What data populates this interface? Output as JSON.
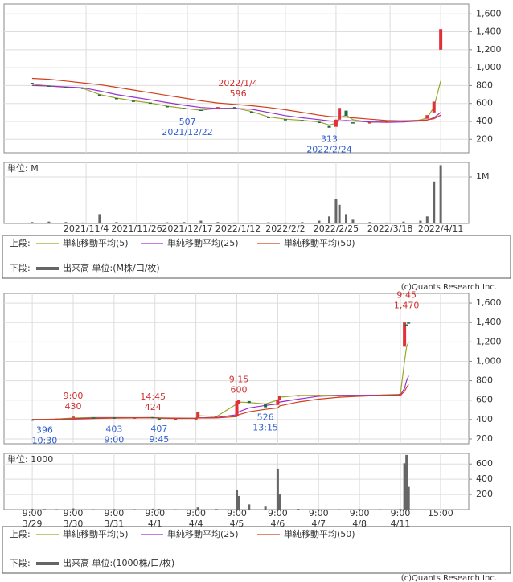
{
  "chart_data": [
    {
      "type": "candlestick",
      "volume_unit": "単位: M",
      "xlim": [
        -8.3,
        129.3
      ],
      "xticks": [
        {
          "value": 16,
          "label": "2021/11/4"
        },
        {
          "value": 31,
          "label": "2021/11/26"
        },
        {
          "value": 46,
          "label": "2021/12/17"
        },
        {
          "value": 61,
          "label": "2022/1/12"
        },
        {
          "value": 75,
          "label": "2022/2/2"
        },
        {
          "value": 90,
          "label": "2022/2/25"
        },
        {
          "value": 106,
          "label": "2022/3/18"
        },
        {
          "value": 121,
          "label": "2022/4/11"
        }
      ],
      "ylim": [
        50,
        1710
      ],
      "yticks": [
        200,
        400,
        600,
        800,
        {
          "value": 1000,
          "label": "1,000"
        },
        {
          "value": 1200,
          "label": "1,200"
        },
        {
          "value": 1400,
          "label": "1,400"
        },
        {
          "value": 1600,
          "label": "1,600"
        }
      ],
      "volume_ylim": [
        0,
        1310000
      ],
      "volume_yticks": [
        {
          "value": 1000000,
          "label": "1M"
        }
      ],
      "up_color": "#e0303a",
      "down_color": "#1d6b45",
      "volume_color": "#666666",
      "x": [
        0,
        5,
        10,
        15,
        20,
        25,
        30,
        35,
        40,
        45,
        50,
        55,
        60,
        65,
        70,
        75,
        80,
        85,
        88,
        90,
        91,
        93,
        95,
        100,
        105,
        110,
        115,
        117,
        119,
        121
      ],
      "open": [
        830,
        800,
        785,
        775,
        700,
        660,
        630,
        610,
        570,
        550,
        530,
        555,
        560,
        510,
        450,
        425,
        415,
        395,
        350,
        340,
        420,
        520,
        390,
        385,
        395,
        405,
        410,
        430,
        500,
        1200
      ],
      "close": [
        820,
        790,
        780,
        770,
        680,
        650,
        620,
        600,
        560,
        540,
        520,
        560,
        550,
        500,
        440,
        420,
        410,
        390,
        330,
        420,
        550,
        460,
        380,
        390,
        400,
        410,
        420,
        470,
        620,
        1430
      ],
      "volume": [
        30000,
        40000,
        30000,
        20000,
        200000,
        30000,
        20000,
        20000,
        25000,
        30000,
        60000,
        30000,
        20000,
        20000,
        25000,
        20000,
        30000,
        60000,
        150000,
        520000,
        400000,
        200000,
        80000,
        30000,
        20000,
        40000,
        60000,
        150000,
        900000,
        1250000
      ],
      "series": [
        {
          "name": "単純移動平均(5)",
          "color": "#9aa82a",
          "values": [
            815,
            795,
            780,
            770,
            700,
            660,
            630,
            605,
            570,
            545,
            525,
            545,
            550,
            510,
            450,
            425,
            412,
            395,
            360,
            380,
            440,
            470,
            420,
            390,
            398,
            405,
            415,
            440,
            560,
            850
          ]
        },
        {
          "name": "単純移動平均(25)",
          "color": "#9b30d0",
          "values": [
            800,
            795,
            785,
            775,
            740,
            700,
            670,
            640,
            610,
            580,
            555,
            545,
            545,
            535,
            500,
            465,
            440,
            420,
            405,
            400,
            405,
            410,
            405,
            395,
            390,
            395,
            405,
            415,
            440,
            500
          ]
        },
        {
          "name": "単純移動平均(50)",
          "color": "#d0401a",
          "values": [
            880,
            870,
            850,
            830,
            810,
            780,
            750,
            720,
            690,
            660,
            630,
            605,
            590,
            575,
            555,
            530,
            500,
            470,
            455,
            450,
            450,
            448,
            440,
            425,
            410,
            405,
            410,
            418,
            430,
            470
          ]
        }
      ],
      "annotations": [
        {
          "x": 61,
          "value": 596,
          "label": "2022/1/4",
          "position": "above",
          "color": "#d03030"
        },
        {
          "x": 46,
          "value": 507,
          "label": "2021/12/22",
          "position": "below",
          "color": "#3060d0"
        },
        {
          "x": 88,
          "value": 313,
          "label": "2022/2/24",
          "position": "below",
          "color": "#3060d0"
        }
      ],
      "legend_upper_label": "上段:",
      "legend_lower_label": "下段:",
      "volume_legend": "出来高 単位:(M株/口/枚)",
      "source": "(c)Quants Research Inc."
    },
    {
      "type": "candlestick",
      "volume_unit": "単位: 1000",
      "xlim": [
        -0.69,
        10.67
      ],
      "xticks": [
        {
          "value": 0,
          "label": "9:00"
        },
        {
          "value": 1,
          "label": "9:00"
        },
        {
          "value": 2,
          "label": "9:00"
        },
        {
          "value": 3,
          "label": "9:00"
        },
        {
          "value": 4,
          "label": "9:00"
        },
        {
          "value": 5,
          "label": "9:00"
        },
        {
          "value": 6,
          "label": "9:00"
        },
        {
          "value": 7,
          "label": "9:00"
        },
        {
          "value": 8,
          "label": "9:00"
        },
        {
          "value": 9,
          "label": "9:00"
        },
        {
          "value": 9.98,
          "label": "15:00"
        }
      ],
      "xtick_dates": [
        "3/29",
        "3/30",
        "3/31",
        "4/1",
        "4/4",
        "4/5",
        "4/6",
        "4/7",
        "4/8",
        "4/11",
        null
      ],
      "ylim": [
        150,
        1700
      ],
      "yticks": [
        200,
        400,
        600,
        800,
        {
          "value": 1000,
          "label": "1,000"
        },
        {
          "value": 1200,
          "label": "1,200"
        },
        {
          "value": 1400,
          "label": "1,400"
        },
        {
          "value": 1600,
          "label": "1,600"
        }
      ],
      "volume_ylim": [
        0,
        740
      ],
      "volume_yticks": [
        200,
        400,
        600
      ],
      "up_color": "#e0303a",
      "down_color": "#1d6b45",
      "volume_color": "#666666",
      "x": [
        0,
        0.3,
        0.6,
        1,
        1.5,
        2,
        2.5,
        2.95,
        3.1,
        3.5,
        4,
        4.05,
        4.5,
        5,
        5.05,
        5.3,
        5.7,
        6,
        6.05,
        6.5,
        7,
        7.5,
        8,
        8.5,
        9,
        9.1,
        9.15,
        9.2
      ],
      "open": [
        400,
        398,
        405,
        420,
        422,
        420,
        418,
        424,
        410,
        408,
        410,
        420,
        425,
        440,
        560,
        590,
        560,
        550,
        600,
        645,
        650,
        650,
        650,
        650,
        660,
        1150,
        1380,
        1400
      ],
      "close": [
        398,
        405,
        410,
        430,
        420,
        418,
        420,
        420,
        407,
        410,
        412,
        480,
        430,
        590,
        600,
        570,
        526,
        600,
        640,
        650,
        652,
        650,
        651,
        652,
        665,
        1400,
        1370,
        1390
      ],
      "volume": [
        10,
        8,
        6,
        15,
        5,
        8,
        6,
        12,
        10,
        5,
        6,
        30,
        8,
        260,
        180,
        70,
        40,
        540,
        200,
        10,
        5,
        5,
        8,
        5,
        8,
        610,
        720,
        300
      ],
      "series": [
        {
          "name": "単純移動平均(5)",
          "color": "#9aa82a",
          "values": [
            400,
            402,
            405,
            415,
            420,
            420,
            419,
            420,
            412,
            410,
            411,
            440,
            430,
            560,
            580,
            575,
            560,
            600,
            630,
            648,
            650,
            650,
            651,
            652,
            660,
            1000,
            1150,
            1200
          ]
        },
        {
          "name": "単純移動平均(25)",
          "color": "#9b30d0",
          "values": [
            400,
            400,
            402,
            408,
            415,
            418,
            418,
            419,
            415,
            412,
            412,
            418,
            420,
            450,
            480,
            520,
            545,
            560,
            580,
            610,
            640,
            648,
            650,
            651,
            652,
            720,
            800,
            850
          ]
        },
        {
          "name": "単純移動平均(50)",
          "color": "#d0401a",
          "values": [
            400,
            400,
            401,
            404,
            410,
            414,
            416,
            418,
            416,
            414,
            413,
            415,
            416,
            430,
            450,
            480,
            505,
            520,
            540,
            580,
            610,
            630,
            640,
            648,
            650,
            690,
            730,
            760
          ]
        }
      ],
      "annotations": [
        {
          "x": 1,
          "value": 430,
          "label": "9:00",
          "position": "above",
          "color": "#d03030"
        },
        {
          "x": 2.95,
          "value": 424,
          "label": "14:45",
          "position": "above",
          "color": "#d03030"
        },
        {
          "x": 5.05,
          "value": 600,
          "label": "9:15",
          "position": "above",
          "color": "#d03030"
        },
        {
          "x": 9.15,
          "value": 1470,
          "value_label": "1,470",
          "label": "9:45",
          "position": "above",
          "color": "#d03030"
        },
        {
          "x": 0.3,
          "value": 396,
          "label": "10:30",
          "position": "below",
          "color": "#3060d0"
        },
        {
          "x": 2,
          "value": 403,
          "label": "9:00",
          "position": "below",
          "color": "#3060d0"
        },
        {
          "x": 3.1,
          "value": 407,
          "label": "9:45",
          "position": "below",
          "color": "#3060d0"
        },
        {
          "x": 5.7,
          "value": 526,
          "label": "13:15",
          "position": "below",
          "color": "#3060d0"
        }
      ],
      "legend_upper_label": "上段:",
      "legend_lower_label": "下段:",
      "volume_legend": "出来高 単位:(1000株/口/枚)",
      "source": "(c)Quants Research Inc."
    }
  ]
}
